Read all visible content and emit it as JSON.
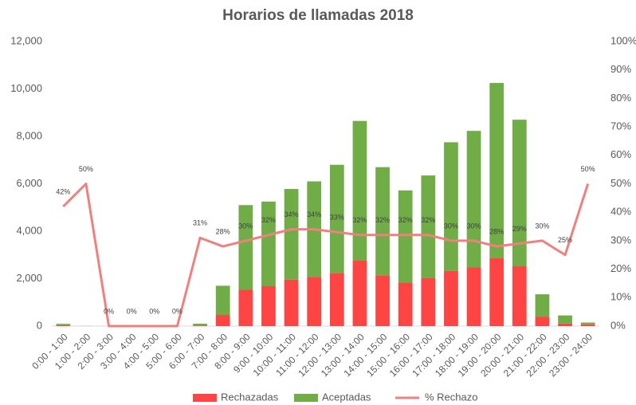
{
  "chart_data": {
    "type": "bar_line",
    "title": "Horarios de llamadas 2018",
    "categories": [
      "0:00 - 1:00",
      "1:00 - 2:00",
      "2:00 - 3:00",
      "3:00 - 4:00",
      "4:00 - 5:00",
      "5:00 - 6:00",
      "6:00 - 7:00",
      "7:00 - 8:00",
      "8:00 - 9:00",
      "9:00 - 10:00",
      "10:00 - 11:00",
      "11:00 - 12:00",
      "12:00 - 13:00",
      "13:00 - 14:00",
      "14:00 - 15:00",
      "15:00 - 16:00",
      "16:00 - 17:00",
      "17:00 - 18:00",
      "18:00 - 19:00",
      "19:00 - 20:00",
      "20:00 - 21:00",
      "21:00 - 22:00",
      "22:00 - 23:00",
      "23:00 - 24:00"
    ],
    "series": [
      {
        "name": "Rechazadas",
        "color": "#ff4444",
        "stack": true,
        "values": [
          40,
          2,
          0,
          0,
          0,
          0,
          30,
          470,
          1530,
          1680,
          1960,
          2070,
          2240,
          2770,
          2140,
          1830,
          2030,
          2330,
          2470,
          2870,
          2520,
          400,
          110,
          75
        ]
      },
      {
        "name": "Aceptadas",
        "color": "#70ad47",
        "stack": true,
        "values": [
          55,
          2,
          0,
          0,
          0,
          0,
          70,
          1230,
          3570,
          3570,
          3820,
          4030,
          4560,
          5880,
          4560,
          3890,
          4320,
          5420,
          5760,
          7380,
          6180,
          940,
          340,
          75
        ]
      },
      {
        "name": "% Rechazo",
        "color": "#f08080",
        "axis": "y2",
        "values": [
          42,
          50,
          0,
          0,
          0,
          0,
          31,
          28,
          30,
          32,
          34,
          34,
          33,
          32,
          32,
          32,
          32,
          30,
          30,
          28,
          29,
          30,
          25,
          50
        ],
        "value_labels": [
          "42%",
          "50%",
          "0%",
          "0%",
          "0%",
          "0%",
          "31%",
          "28%",
          "30%",
          "32%",
          "34%",
          "34%",
          "33%",
          "32%",
          "32%",
          "32%",
          "32%",
          "30%",
          "30%",
          "28%",
          "29%",
          "30%",
          "25%",
          "50%"
        ]
      }
    ],
    "ylim": [
      0,
      12000
    ],
    "yticks": [
      0,
      {
        "value": 2000,
        "label": "2,000"
      },
      {
        "value": 4000,
        "label": "4,000"
      },
      {
        "value": 6000,
        "label": "6,000"
      },
      {
        "value": 8000,
        "label": "8,000"
      },
      {
        "value": 10000,
        "label": "10,000"
      },
      {
        "value": 12000,
        "label": "12,000"
      }
    ],
    "y2lim": [
      0,
      100
    ],
    "y2ticks": [
      {
        "value": 0,
        "label": "0%"
      },
      {
        "value": 10,
        "label": "10%"
      },
      {
        "value": 20,
        "label": "20%"
      },
      {
        "value": 30,
        "label": "30%"
      },
      {
        "value": 40,
        "label": "40%"
      },
      {
        "value": 50,
        "label": "50%"
      },
      {
        "value": 60,
        "label": "60%"
      },
      {
        "value": 70,
        "label": "70%"
      },
      {
        "value": 80,
        "label": "80%"
      },
      {
        "value": 90,
        "label": "90%"
      },
      {
        "value": 100,
        "label": "100%"
      }
    ],
    "grid": false,
    "legend": "bottom"
  }
}
